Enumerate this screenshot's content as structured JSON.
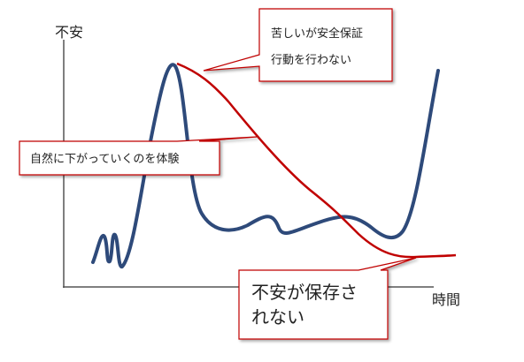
{
  "axes": {
    "y_label": "不安",
    "x_label": "時間"
  },
  "callouts": [
    {
      "lines": [
        "苦しいが安全保証",
        "行動を行わない"
      ]
    },
    {
      "lines": [
        "自然に下がっていくのを体験"
      ]
    },
    {
      "lines": [
        "不安が保存さ",
        "れない"
      ]
    }
  ]
}
